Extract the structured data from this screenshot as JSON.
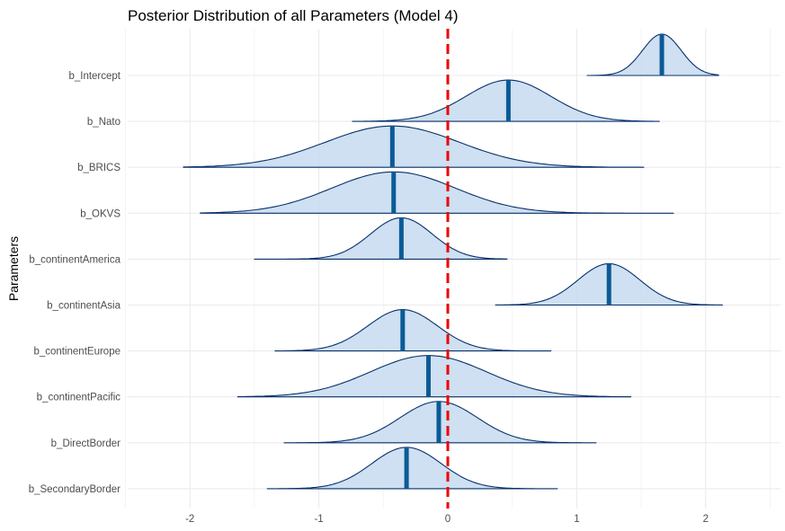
{
  "chart_data": {
    "type": "ridgeline",
    "title": "Posterior Distribution of all Parameters (Model 4)",
    "xlabel": "",
    "ylabel": "Parameters",
    "xlim": [
      -2.45,
      2.5
    ],
    "x_ticks": [
      -2,
      -1,
      0,
      1,
      2
    ],
    "x_tick_labels": [
      "-2",
      "-1",
      "0",
      "1",
      "2"
    ],
    "reference_line": {
      "x": 0,
      "style": "dashed",
      "color": "#ee0000"
    },
    "grid": true,
    "colors": {
      "fill": "#c6dbef",
      "outline": "#08306b",
      "median": "#0b5a96"
    },
    "series": [
      {
        "name": "b_Intercept",
        "min": 1.08,
        "max": 2.1,
        "median": 1.66,
        "sd": 0.15
      },
      {
        "name": "b_Nato",
        "min": -0.74,
        "max": 1.64,
        "median": 0.47,
        "sd": 0.33
      },
      {
        "name": "b_BRICS",
        "min": -2.05,
        "max": 1.52,
        "median": -0.43,
        "sd": 0.52
      },
      {
        "name": "b_OKVS",
        "min": -1.92,
        "max": 1.75,
        "median": -0.42,
        "sd": 0.48
      },
      {
        "name": "b_continentAmerica",
        "min": -1.5,
        "max": 0.46,
        "median": -0.36,
        "sd": 0.24
      },
      {
        "name": "b_continentAsia",
        "min": 0.37,
        "max": 2.13,
        "median": 1.25,
        "sd": 0.24
      },
      {
        "name": "b_continentEurope",
        "min": -1.34,
        "max": 0.8,
        "median": -0.35,
        "sd": 0.27
      },
      {
        "name": "b_continentPacific",
        "min": -1.63,
        "max": 1.42,
        "median": -0.15,
        "sd": 0.45
      },
      {
        "name": "b_DirectBorder",
        "min": -1.27,
        "max": 1.15,
        "median": -0.07,
        "sd": 0.3
      },
      {
        "name": "b_SecondaryBorder",
        "min": -1.4,
        "max": 0.85,
        "median": -0.32,
        "sd": 0.27
      }
    ]
  }
}
